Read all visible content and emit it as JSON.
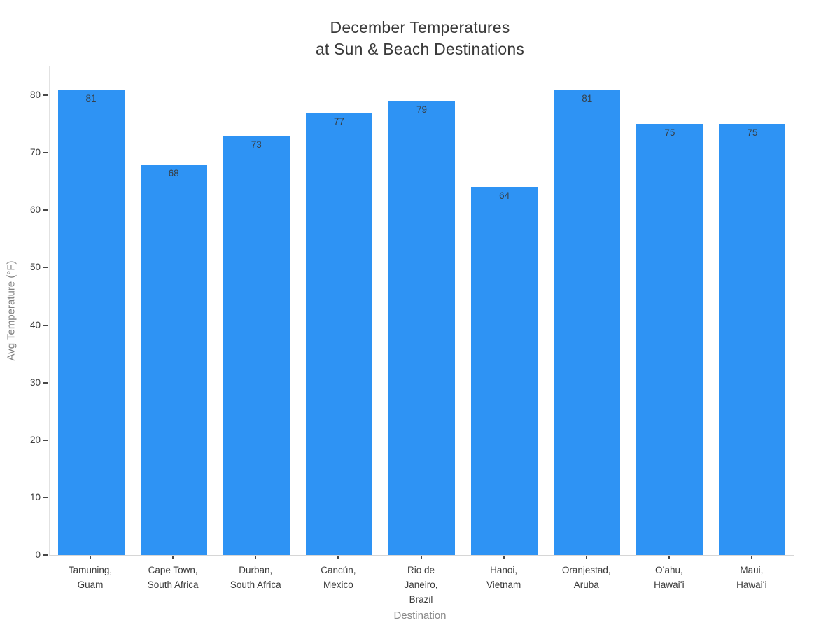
{
  "chart_data": {
    "type": "bar",
    "title": "December Temperatures\nat Sun & Beach Destinations",
    "xlabel": "Destination",
    "ylabel": "Avg Temperature (°F)",
    "categories": [
      "Tamuning,\nGuam",
      "Cape Town,\nSouth Africa",
      "Durban,\nSouth Africa",
      "Cancún,\nMexico",
      "Rio de\nJaneiro,\nBrazil",
      "Hanoi,\nVietnam",
      "Oranjestad,\nAruba",
      "Oʻahu,\nHawaiʻi",
      "Maui,\nHawaiʻi"
    ],
    "values": [
      81,
      68,
      73,
      77,
      79,
      64,
      81,
      75,
      75
    ],
    "yticks": [
      0,
      10,
      20,
      30,
      40,
      50,
      60,
      70,
      80
    ],
    "ylim": [
      0,
      85
    ],
    "grid": false,
    "legend_position": "none",
    "value_labels_shown": true,
    "colors": {
      "bar": "#2e93f4",
      "value_label": "#364049",
      "title": "#3a3a3a",
      "tick_label": "#3b3b3b",
      "axis_title": "#8a8a8a",
      "axis_line": "#e0e0e0",
      "tick_mark": "#474747"
    }
  }
}
